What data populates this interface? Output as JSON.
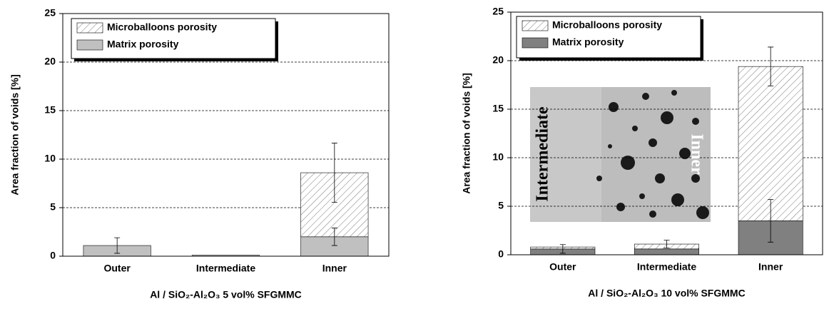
{
  "chart_data": [
    {
      "type": "stacked_bar",
      "x_label": "Al / SiO₂-Al₂O₃ 5 vol% SFGMMC",
      "y_label": "Area fraction of voids [%]",
      "categories": [
        "Outer",
        "Intermediate",
        "Inner"
      ],
      "series": [
        {
          "name": "Matrix porosity",
          "color": "#c0c0c0",
          "values": [
            1.1,
            0.1,
            2.0
          ],
          "errors": [
            0.8,
            null,
            0.9
          ]
        },
        {
          "name": "Microballoons porosity",
          "color": "hatch",
          "values": [
            0,
            0,
            6.6
          ],
          "errors": [
            null,
            null,
            3.05
          ]
        }
      ],
      "ylim": [
        0,
        25
      ],
      "yticks": [
        0,
        5,
        10,
        15,
        20,
        25
      ],
      "grid": true,
      "legend": "upper left"
    },
    {
      "type": "stacked_bar",
      "x_label": "Al / SiO₂-Al₂O₃ 10 vol% SFGMMC",
      "y_label": "Area fraction of voids [%]",
      "categories": [
        "Outer",
        "Intermediate",
        "Inner"
      ],
      "series": [
        {
          "name": "Matrix porosity",
          "color": "#808080",
          "values": [
            0.6,
            0.6,
            3.5
          ],
          "errors": [
            0.45,
            null,
            2.2
          ]
        },
        {
          "name": "Microballoons porosity",
          "color": "hatch",
          "values": [
            0.2,
            0.5,
            15.9
          ],
          "errors": [
            null,
            0.4,
            2.0
          ]
        }
      ],
      "ylim": [
        0,
        25
      ],
      "yticks": [
        0,
        5,
        10,
        15,
        20,
        25
      ],
      "grid": true,
      "legend": "upper left",
      "inset_labels": [
        "Intermediate",
        "Inner"
      ]
    }
  ]
}
